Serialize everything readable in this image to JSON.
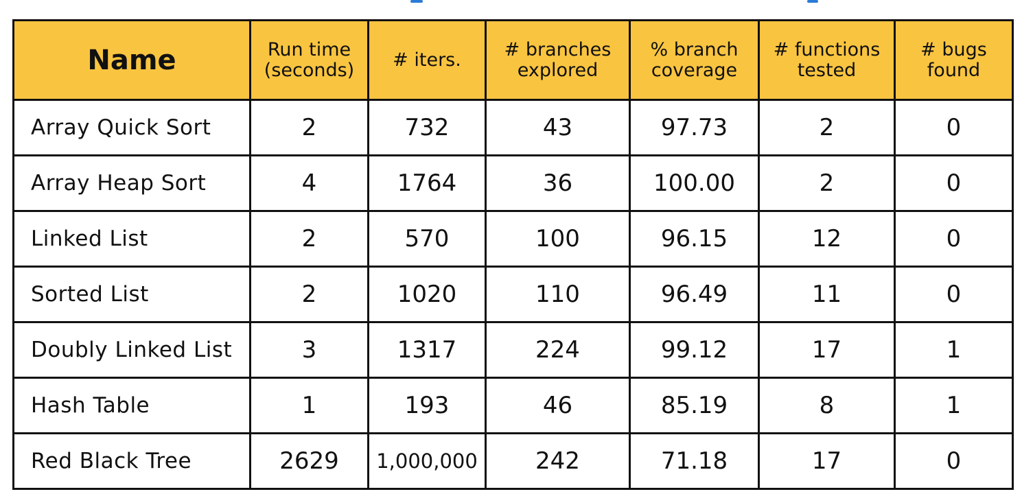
{
  "table": {
    "headers": [
      "Name",
      "Run time\n(seconds)",
      "# iters.",
      "# branches\nexplored",
      "% branch\ncoverage",
      "# functions\ntested",
      "# bugs\nfound"
    ],
    "rows": [
      [
        "Array Quick Sort",
        "2",
        "732",
        "43",
        "97.73",
        "2",
        "0"
      ],
      [
        "Array Heap Sort",
        "4",
        "1764",
        "36",
        "100.00",
        "2",
        "0"
      ],
      [
        "Linked List",
        "2",
        "570",
        "100",
        "96.15",
        "12",
        "0"
      ],
      [
        "Sorted List",
        "2",
        "1020",
        "110",
        "96.49",
        "11",
        "0"
      ],
      [
        "Doubly Linked List",
        "3",
        "1317",
        "224",
        "99.12",
        "17",
        "1"
      ],
      [
        "Hash Table",
        "1",
        "193",
        "46",
        "85.19",
        "8",
        "1"
      ],
      [
        "Red Black Tree",
        "2629",
        "1,000,000",
        "242",
        "71.18",
        "17",
        "0"
      ]
    ]
  },
  "colors": {
    "header_fill": "#f9c440",
    "border": "#111111",
    "accent_stroke": "#2b7bd6"
  }
}
